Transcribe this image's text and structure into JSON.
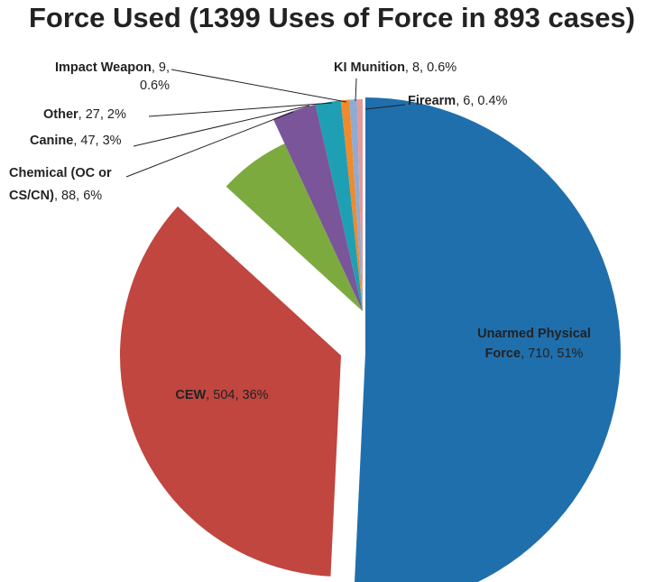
{
  "chart_data": {
    "type": "pie",
    "title": "Force Used (1399 Uses of Force in 893 cases)",
    "categories": [
      "Unarmed Physical Force",
      "CEW",
      "Chemical (OC or CS/CN)",
      "Canine",
      "Other",
      "Impact Weapon",
      "KI Munition",
      "Firearm"
    ],
    "values": [
      710,
      504,
      88,
      47,
      27,
      9,
      8,
      6
    ],
    "percent_labels": [
      "51%",
      "36%",
      "6%",
      "3%",
      "2%",
      "0.6%",
      "0.6%",
      "0.4%"
    ],
    "colors": [
      "#1f6fad",
      "#c0463f",
      "#7caa3f",
      "#7a559a",
      "#1f9fb3",
      "#f08a2c",
      "#8fabd2",
      "#e59a9a"
    ],
    "labels": [
      {
        "lines": [
          {
            "cat": "Unarmed Physical",
            "val": ""
          },
          {
            "cat": "Force",
            "val": ", 710, 51%"
          }
        ]
      },
      {
        "lines": [
          {
            "cat": "CEW",
            "val": ", 504, 36%"
          }
        ]
      },
      {
        "lines": [
          {
            "cat": "Chemical (OC or",
            "val": ""
          },
          {
            "cat": "CS/CN)",
            "val": ", 88, 6%"
          }
        ]
      },
      {
        "lines": [
          {
            "cat": "Canine",
            "val": ", 47, 3%"
          }
        ]
      },
      {
        "lines": [
          {
            "cat": "Other",
            "val": ", 27, 2%"
          }
        ]
      },
      {
        "lines": [
          {
            "cat": "Impact Weapon",
            "val": ", 9,"
          },
          {
            "cat": "",
            "val": "0.6%"
          }
        ]
      },
      {
        "lines": [
          {
            "cat": "KI Munition",
            "val": ", 8, 0.6%"
          }
        ]
      },
      {
        "lines": [
          {
            "cat": "Firearm",
            "val": ", 6, 0.4%"
          }
        ]
      }
    ],
    "exploded": true,
    "legend": "none"
  }
}
